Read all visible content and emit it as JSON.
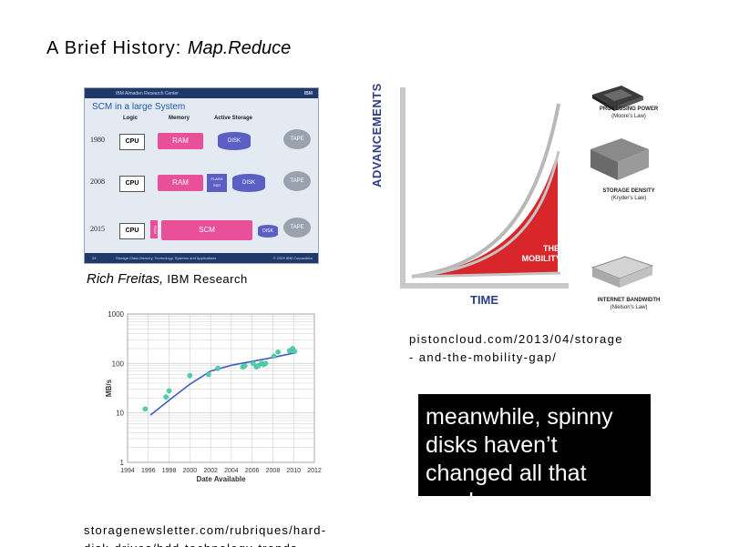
{
  "slide": {
    "title_main": "A Brief History:",
    "title_topic": "Map.Reduce"
  },
  "ibm_slide": {
    "header_left": "IBM Almaden Research Center",
    "header_right": "IBM",
    "heading": "SCM in a large System",
    "columns": [
      "Logic",
      "Memory",
      "Active Storage"
    ],
    "rows": [
      {
        "year": "1980",
        "cpu": "CPU",
        "memory": "RAM",
        "storage": "DISK",
        "archive": "TAPE"
      },
      {
        "year": "2008",
        "cpu": "CPU",
        "memory": "RAM",
        "flash": "FLASH SSD",
        "storage": "DISK",
        "archive": "TAPE"
      },
      {
        "year": "2015",
        "cpu": "CPU",
        "pcm": "RAM",
        "memory": "SCM",
        "storage": "DISK",
        "archive": "TAPE"
      }
    ],
    "footer_page": "24",
    "footer_text": "Storage Class Memory, Technology, Systems and Applications",
    "footer_right": "© 2009 IBM Corporation"
  },
  "ibm_caption": {
    "name": "Rich Freitas,",
    "org": "IBM Research"
  },
  "mobility_gap": {
    "y_label": "ADVANCEMENTS",
    "x_label": "TIME",
    "gap_label_1": "THE",
    "gap_label_2": "MOBILITY GAP",
    "legend": [
      {
        "title": "PROCESSING POWER",
        "law": "(Moore's Law)"
      },
      {
        "title": "STORAGE DENSITY",
        "law": "(Kryder's Law)"
      },
      {
        "title": "INTERNET BANDWIDTH",
        "law": "(Nielson's Law)"
      }
    ],
    "colors": {
      "red": "#d8262a",
      "axis": "#b0b0b0",
      "label_blue": "#2c3f86"
    }
  },
  "source_1": {
    "line1": "pistoncloud.com/2013/04/storage",
    "line2": "- and-the-mobility-gap/"
  },
  "chart_data": {
    "type": "line",
    "title": "",
    "xlabel": "Date Available",
    "ylabel": "MB/s",
    "y_scale": "log",
    "ylim": [
      1,
      1000
    ],
    "xlim": [
      1994,
      2012
    ],
    "x_ticks": [
      "1994",
      "1996",
      "1998",
      "2000",
      "2002",
      "2004",
      "2006",
      "2008",
      "2010",
      "2012"
    ],
    "y_ticks": [
      "1",
      "10",
      "100",
      "1000"
    ],
    "grid": true,
    "series": [
      {
        "kind": "trend",
        "x": [
          1996.2,
          1998,
          2000,
          2002,
          2004,
          2006,
          2008,
          2010
        ],
        "y": [
          9,
          18,
          38,
          70,
          92,
          110,
          132,
          162
        ]
      },
      {
        "kind": "points",
        "x": [
          1995.7,
          1997.7,
          1998.0,
          2000.0,
          2001.8,
          2002.7,
          2005.1,
          2005.3,
          2006.1,
          2006.4,
          2006.6,
          2006.9,
          2007.1,
          2007.3,
          2008.1,
          2008.5,
          2009.6,
          2009.9,
          2010.1
        ],
        "y": [
          12,
          21,
          28,
          57,
          60,
          80,
          85,
          90,
          100,
          85,
          90,
          100,
          95,
          100,
          140,
          170,
          180,
          200,
          175
        ]
      }
    ],
    "colors": {
      "trend": "#3d5fc4",
      "points": "#4fcfae",
      "grid": "#d0d0d0"
    }
  },
  "source_2": {
    "line1": "storagenewsletter.com/rubriques/hard-",
    "line2": "disk-drives/hdd-technology-trends"
  },
  "callout": {
    "text": "meanwhile, spinny disks haven’t changed all that much"
  }
}
